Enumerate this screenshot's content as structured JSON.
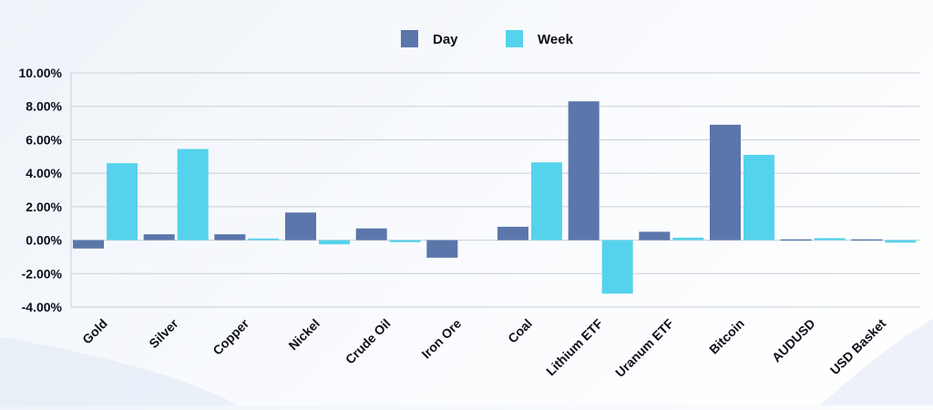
{
  "chart_data": {
    "type": "bar",
    "categories": [
      "Gold",
      "Silver",
      "Copper",
      "Nickel",
      "Crude Oil",
      "Iron Ore",
      "Coal",
      "Lithium ETF",
      "Uranum ETF",
      "Bitcoin",
      "AUDUSD",
      "USD Basket"
    ],
    "series": [
      {
        "name": "Day",
        "values": [
          -0.5,
          0.35,
          0.35,
          1.65,
          0.7,
          -1.05,
          0.8,
          8.3,
          0.5,
          6.9,
          0.05,
          0.05
        ]
      },
      {
        "name": "Week",
        "values": [
          4.6,
          5.45,
          0.1,
          -0.25,
          -0.12,
          0.0,
          4.65,
          -3.2,
          0.15,
          5.1,
          0.12,
          -0.15
        ]
      }
    ],
    "y_ticks": [
      "10.00%",
      "8.00%",
      "6.00%",
      "4.00%",
      "2.00%",
      "0.00%",
      "-2.00%",
      "-4.00%"
    ],
    "ylim": [
      -4,
      10
    ],
    "grid": true,
    "legend_position": "top-center",
    "colors": {
      "Day": "#5b76ab",
      "Week": "#56d3ec",
      "grid": "#c9ced6",
      "text": "#0d0d1a"
    }
  }
}
